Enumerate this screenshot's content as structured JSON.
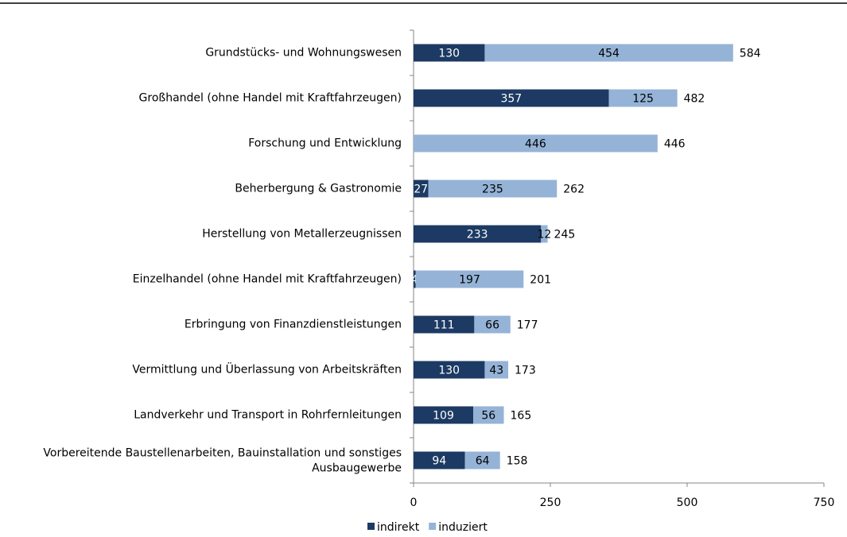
{
  "chart_data": {
    "type": "stacked-barh",
    "categories": [
      "Grundstücks- und Wohnungswesen",
      "Großhandel (ohne Handel mit Kraftfahrzeugen)",
      "Forschung und Entwicklung",
      "Beherbergung & Gastronomie",
      "Herstellung von Metallerzeugnissen",
      "Einzelhandel (ohne Handel mit Kraftfahrzeugen)",
      "Erbringung von Finanzdienstleistungen",
      "Vermittlung und Überlassung von Arbeitskräften",
      "Landverkehr und Transport in Rohrfernleitungen",
      [
        "Vorbereitende Baustellenarbeiten, Bauinstallation und sonstiges",
        "Ausbaugewerbe"
      ]
    ],
    "series": [
      {
        "name": "indirekt",
        "color": "#1c3a63",
        "values": [
          130,
          357,
          null,
          27,
          233,
          4,
          111,
          130,
          109,
          94
        ]
      },
      {
        "name": "induziert",
        "color": "#95b3d7",
        "values": [
          454,
          125,
          446,
          235,
          12,
          197,
          66,
          43,
          56,
          64
        ]
      }
    ],
    "totals": [
      584,
      482,
      446,
      262,
      245,
      201,
      177,
      173,
      165,
      158
    ],
    "xlim": [
      0,
      750
    ],
    "xticks": [
      0,
      250,
      500,
      750
    ],
    "legend": "bottom"
  }
}
